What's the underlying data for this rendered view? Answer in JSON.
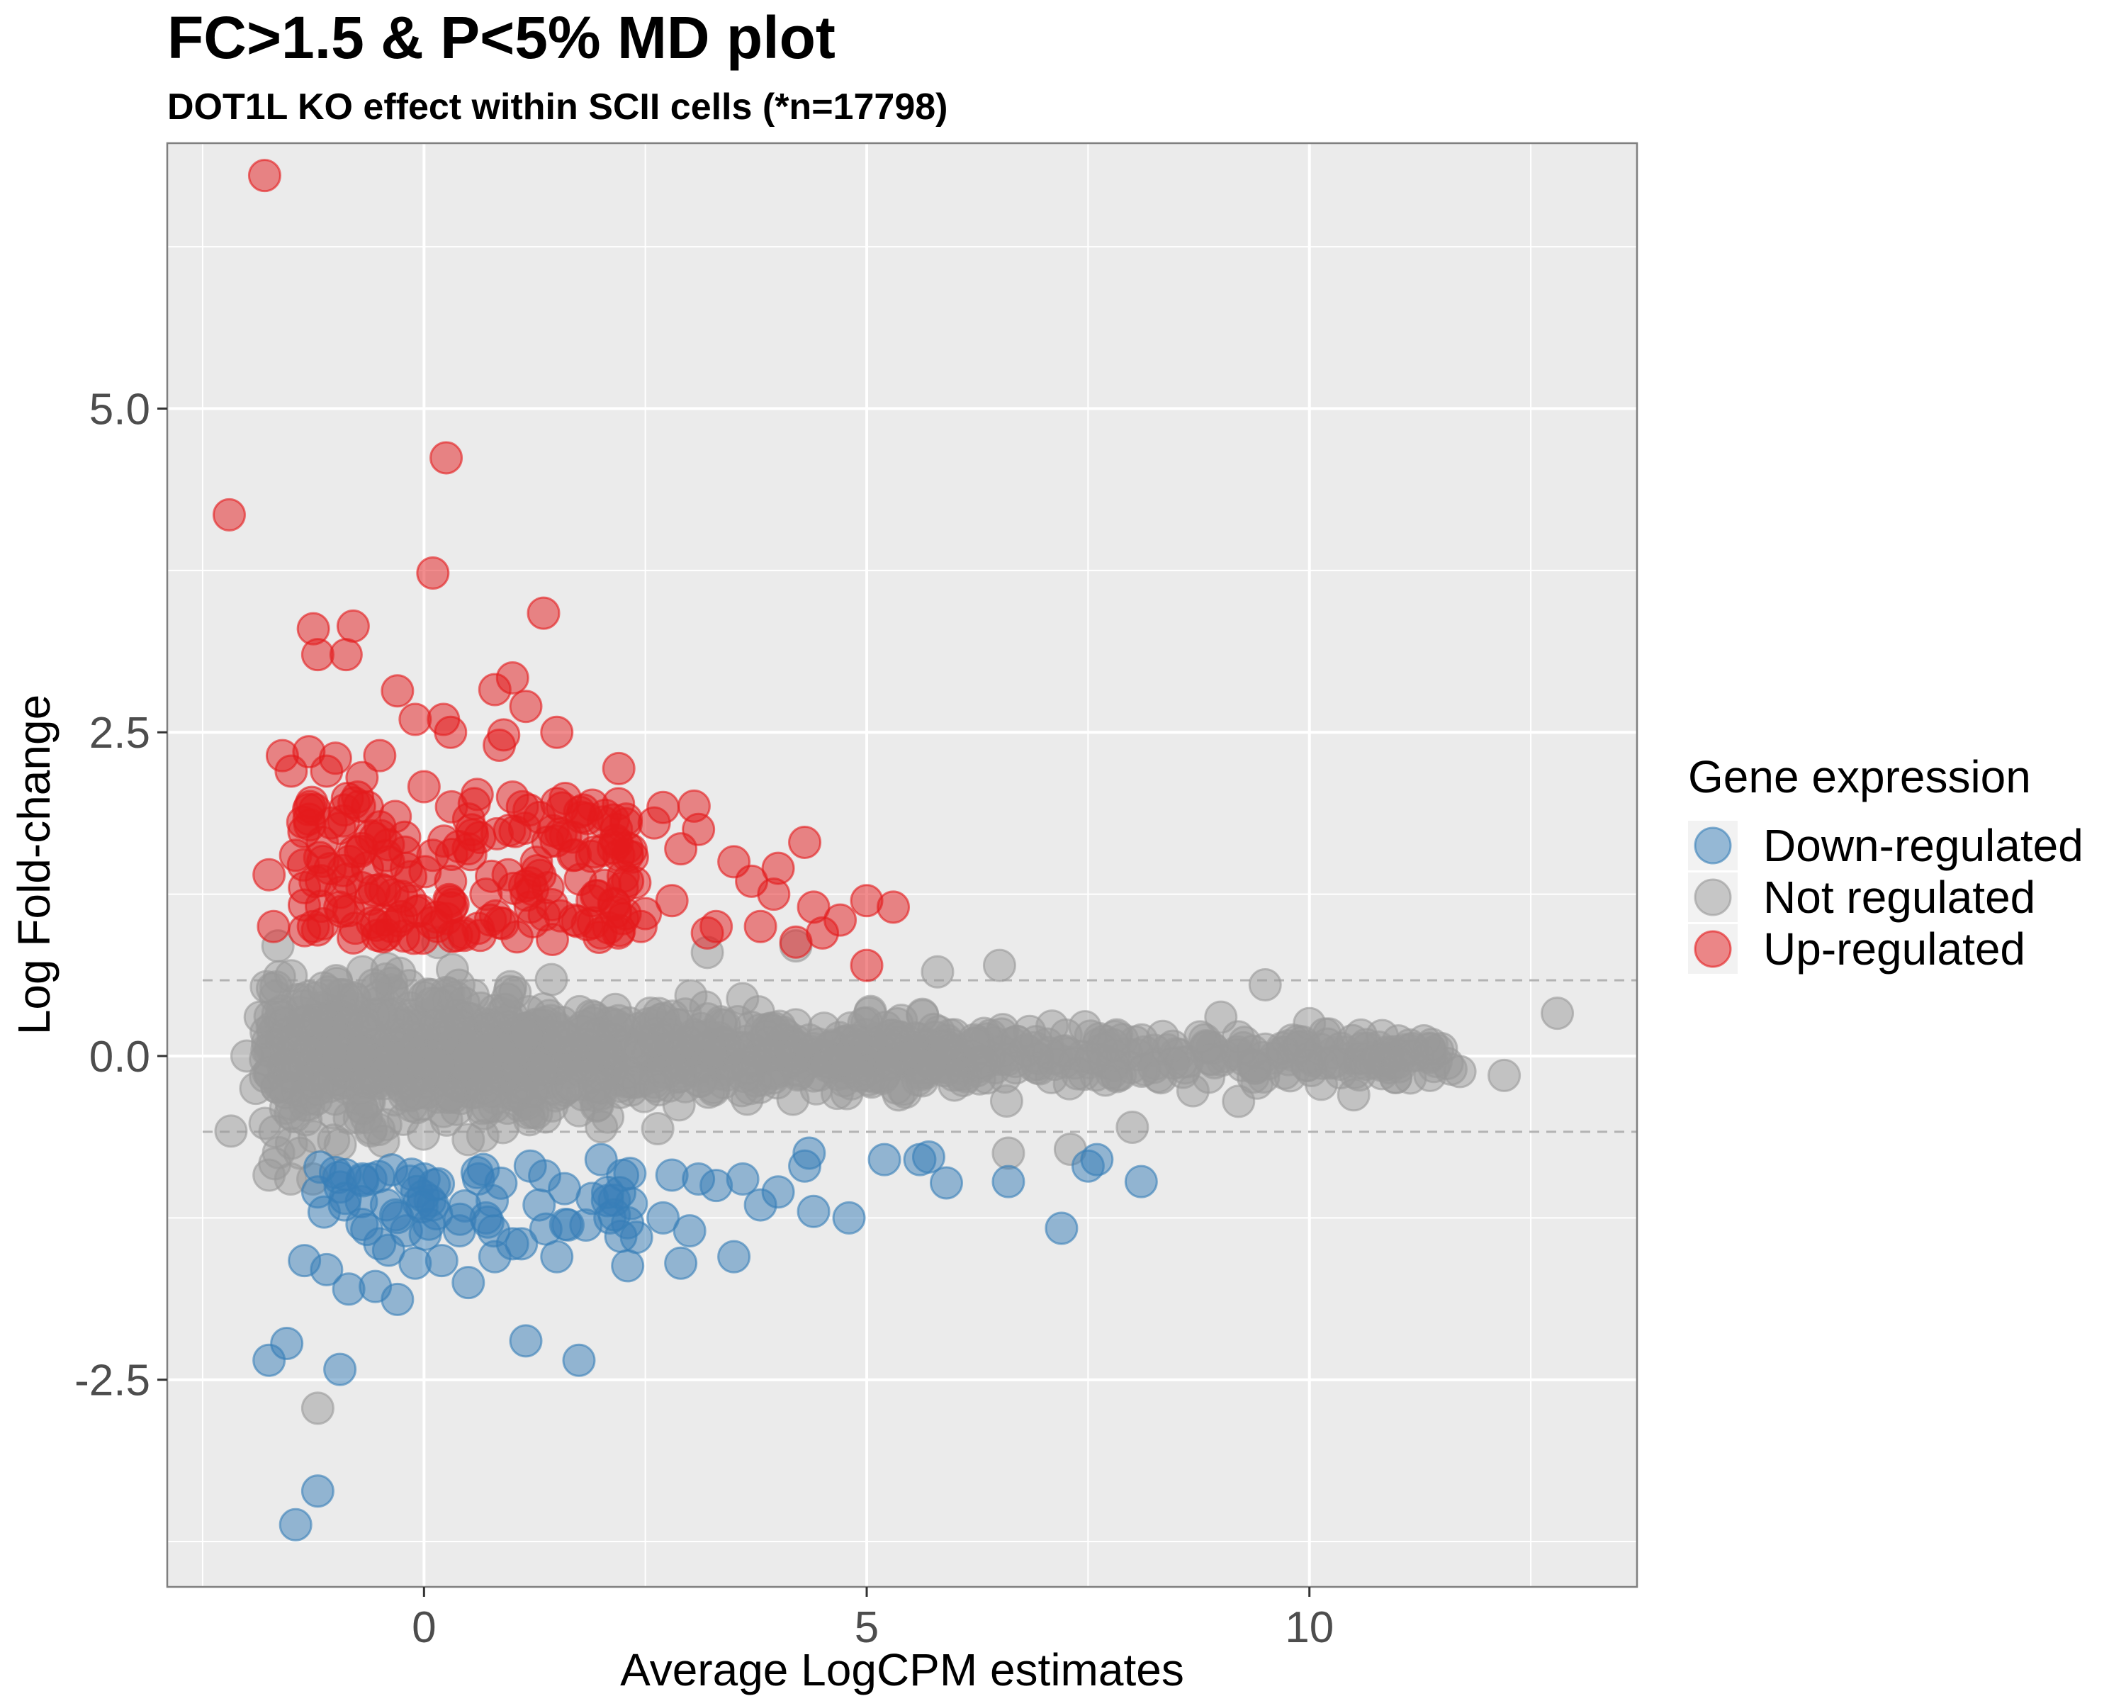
{
  "chart_data": {
    "type": "scatter",
    "title": "FC>1.5 & P<5% MD plot",
    "subtitle": "DOT1L KO effect within SCII cells (*n=17798)",
    "xlabel": "Average LogCPM estimates",
    "ylabel": "Log Fold-change",
    "xlim": [
      -2.9,
      13.7
    ],
    "ylim": [
      -4.1,
      7.05
    ],
    "x_ticks": [
      0,
      5,
      10
    ],
    "x_tick_labels": [
      "0",
      "5",
      "10"
    ],
    "y_ticks": [
      -2.5,
      0.0,
      2.5,
      5.0
    ],
    "y_tick_labels": [
      "-2.5",
      "0.0",
      "2.5",
      "5.0"
    ],
    "threshold_lines": [
      0.585,
      -0.585
    ],
    "grid": true,
    "legend": {
      "title": "Gene expression",
      "position": "right",
      "entries": [
        "Down-regulated",
        "Not regulated",
        "Up-regulated"
      ]
    },
    "colors": {
      "Down-regulated": "#377eb8",
      "Not regulated": "#999999",
      "Up-regulated": "#e41a1c",
      "panel": "#ebebeb"
    },
    "series": [
      {
        "name": "Up-regulated",
        "points": [
          [
            -1.8,
            6.8
          ],
          [
            0.25,
            4.62
          ],
          [
            -2.2,
            4.18
          ],
          [
            0.1,
            3.73
          ],
          [
            1.35,
            3.42
          ],
          [
            -1.25,
            3.3
          ],
          [
            -0.8,
            3.32
          ],
          [
            -1.2,
            3.1
          ],
          [
            -0.88,
            3.1
          ],
          [
            1.0,
            2.92
          ],
          [
            -0.3,
            2.82
          ],
          [
            0.8,
            2.83
          ],
          [
            1.15,
            2.7
          ],
          [
            -0.1,
            2.6
          ],
          [
            0.22,
            2.6
          ],
          [
            0.3,
            2.5
          ],
          [
            0.9,
            2.48
          ],
          [
            1.5,
            2.5
          ],
          [
            -1.6,
            2.32
          ],
          [
            -1.3,
            2.35
          ],
          [
            -1.0,
            2.3
          ],
          [
            -0.5,
            2.32
          ],
          [
            0.85,
            2.4
          ],
          [
            2.2,
            2.22
          ],
          [
            -1.5,
            2.2
          ],
          [
            -1.1,
            2.2
          ],
          [
            -0.7,
            2.15
          ],
          [
            0.0,
            2.08
          ],
          [
            0.6,
            2.02
          ],
          [
            1.0,
            2.0
          ],
          [
            1.5,
            1.95
          ],
          [
            2.7,
            1.92
          ],
          [
            3.05,
            1.93
          ],
          [
            2.6,
            1.8
          ],
          [
            3.1,
            1.75
          ],
          [
            4.3,
            1.65
          ],
          [
            1.8,
            1.9
          ],
          [
            1.6,
            1.7
          ],
          [
            2.2,
            1.55
          ],
          [
            2.9,
            1.6
          ],
          [
            3.5,
            1.5
          ],
          [
            4.0,
            1.45
          ],
          [
            3.7,
            1.35
          ],
          [
            3.95,
            1.25
          ],
          [
            4.4,
            1.15
          ],
          [
            4.7,
            1.05
          ],
          [
            5.0,
            1.2
          ],
          [
            5.3,
            1.15
          ],
          [
            4.5,
            0.95
          ],
          [
            3.3,
            1.0
          ],
          [
            2.5,
            1.1
          ],
          [
            1.9,
            1.2
          ],
          [
            -1.7,
            1.0
          ],
          [
            -1.75,
            1.4
          ],
          [
            -1.35,
            1.3
          ],
          [
            -1.45,
            1.55
          ],
          [
            -1.15,
            1.65
          ],
          [
            -1.05,
            1.8
          ],
          [
            -0.9,
            1.9
          ],
          [
            -0.75,
            2.0
          ],
          [
            -0.6,
            1.7
          ],
          [
            -0.4,
            1.5
          ],
          [
            -0.2,
            1.45
          ],
          [
            0.1,
            1.55
          ],
          [
            0.3,
            1.35
          ],
          [
            0.5,
            1.6
          ],
          [
            0.7,
            1.25
          ],
          [
            0.95,
            1.4
          ],
          [
            1.2,
            1.15
          ],
          [
            1.4,
            1.3
          ],
          [
            1.7,
            1.05
          ],
          [
            2.0,
            0.95
          ],
          [
            2.3,
            1.35
          ],
          [
            2.45,
            1.0
          ],
          [
            2.8,
            1.2
          ],
          [
            3.2,
            0.95
          ],
          [
            -1.25,
            1.0
          ],
          [
            -0.95,
            1.15
          ],
          [
            -0.7,
            1.3
          ],
          [
            -0.45,
            1.05
          ],
          [
            -0.15,
            1.2
          ],
          [
            0.15,
            1.0
          ],
          [
            0.45,
            0.95
          ],
          [
            0.75,
            1.05
          ],
          [
            1.05,
            0.92
          ],
          [
            1.45,
            0.9
          ],
          [
            3.8,
            1.0
          ],
          [
            4.2,
            0.88
          ],
          [
            5.0,
            0.7
          ]
        ]
      },
      {
        "name": "Down-regulated",
        "points": [
          [
            -1.45,
            -3.62
          ],
          [
            -1.2,
            -3.36
          ],
          [
            -1.75,
            -2.35
          ],
          [
            -1.55,
            -2.22
          ],
          [
            -0.95,
            -2.42
          ],
          [
            1.15,
            -2.2
          ],
          [
            1.75,
            -2.35
          ],
          [
            -1.35,
            -1.58
          ],
          [
            -1.1,
            -1.65
          ],
          [
            -0.85,
            -1.8
          ],
          [
            -0.55,
            -1.78
          ],
          [
            -0.3,
            -1.88
          ],
          [
            -0.4,
            -1.5
          ],
          [
            -0.1,
            -1.6
          ],
          [
            0.2,
            -1.58
          ],
          [
            0.5,
            -1.75
          ],
          [
            0.8,
            -1.55
          ],
          [
            1.1,
            -1.45
          ],
          [
            1.5,
            -1.55
          ],
          [
            2.3,
            -1.62
          ],
          [
            2.9,
            -1.6
          ],
          [
            3.5,
            -1.55
          ],
          [
            3.8,
            -1.15
          ],
          [
            4.0,
            -1.05
          ],
          [
            4.4,
            -1.2
          ],
          [
            4.8,
            -1.25
          ],
          [
            5.2,
            -0.8
          ],
          [
            5.6,
            -0.8
          ],
          [
            5.7,
            -0.78
          ],
          [
            5.9,
            -0.98
          ],
          [
            6.6,
            -0.97
          ],
          [
            7.2,
            -1.33
          ],
          [
            7.5,
            -0.85
          ],
          [
            7.6,
            -0.8
          ],
          [
            8.1,
            -0.97
          ],
          [
            -1.2,
            -1.05
          ],
          [
            -0.9,
            -1.15
          ],
          [
            -0.7,
            -1.3
          ],
          [
            -0.5,
            -1.45
          ],
          [
            -0.2,
            -1.35
          ],
          [
            0.1,
            -1.15
          ],
          [
            0.4,
            -1.35
          ],
          [
            0.7,
            -1.25
          ],
          [
            1.0,
            -1.45
          ],
          [
            1.3,
            -1.15
          ],
          [
            1.6,
            -1.3
          ],
          [
            1.9,
            -1.1
          ],
          [
            2.1,
            -1.25
          ],
          [
            2.4,
            -1.4
          ],
          [
            2.7,
            -1.25
          ],
          [
            3.0,
            -1.35
          ],
          [
            3.3,
            -1.0
          ],
          [
            3.6,
            -0.95
          ],
          [
            4.3,
            -0.85
          ],
          [
            -1.0,
            -0.9
          ],
          [
            -0.6,
            -0.95
          ],
          [
            0.0,
            -0.95
          ],
          [
            0.6,
            -0.9
          ],
          [
            1.2,
            -0.85
          ],
          [
            2.0,
            -0.8
          ],
          [
            2.8,
            -0.92
          ],
          [
            3.1,
            -0.95
          ],
          [
            4.35,
            -0.75
          ]
        ]
      },
      {
        "name": "Not regulated",
        "points": [
          [
            -1.2,
            -2.72
          ],
          [
            -2.18,
            -0.58
          ],
          [
            12.8,
            0.33
          ],
          [
            12.2,
            -0.15
          ],
          [
            11.7,
            -0.12
          ],
          [
            9.5,
            0.55
          ],
          [
            -1.75,
            -0.92
          ],
          [
            -1.65,
            0.85
          ],
          [
            6.5,
            0.7
          ],
          [
            5.8,
            0.65
          ],
          [
            7.3,
            -0.72
          ],
          [
            6.6,
            -0.75
          ],
          [
            8.0,
            -0.55
          ],
          [
            -2.0,
            0.0
          ],
          [
            -1.9,
            -0.25
          ],
          [
            -1.85,
            0.3
          ],
          [
            4.2,
            0.85
          ],
          [
            3.2,
            0.8
          ],
          [
            -1.5,
            0.62
          ],
          [
            -1.4,
            -0.75
          ],
          [
            10.0,
            0.25
          ],
          [
            10.5,
            -0.3
          ],
          [
            11.0,
            -0.05
          ],
          [
            9.0,
            0.3
          ],
          [
            9.2,
            -0.35
          ]
        ]
      }
    ]
  }
}
